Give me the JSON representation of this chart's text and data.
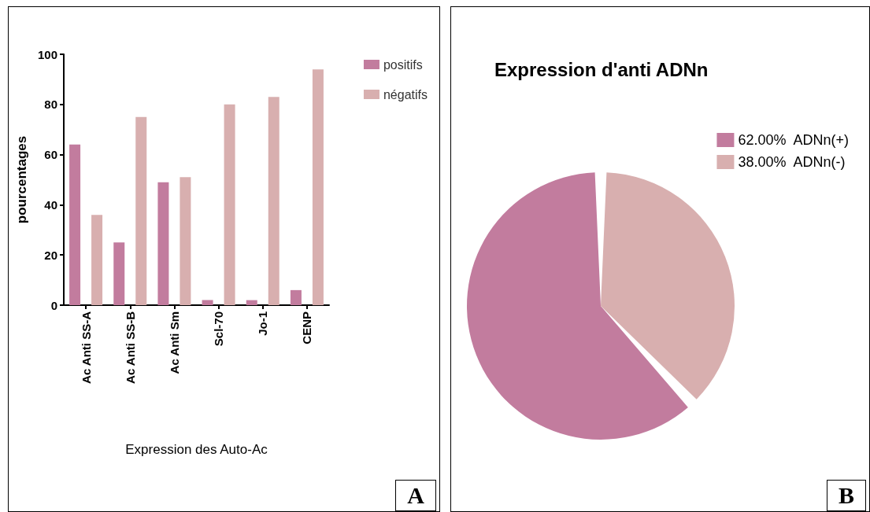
{
  "chart_data": [
    {
      "type": "bar",
      "xlabel": "Expression des Auto-Ac",
      "ylabel": "pourcentages",
      "categories": [
        "Ac Anti SS-A",
        "Ac Anti SS-B",
        "Ac Anti Sm",
        "Scl-70",
        "Jo-1",
        "CENP"
      ],
      "series": [
        {
          "name": "positifs",
          "color": "#c27c9e",
          "values": [
            64,
            25,
            49,
            2,
            2,
            6
          ]
        },
        {
          "name": "négatifs",
          "color": "#d8afaf",
          "values": [
            36,
            75,
            51,
            80,
            83,
            94
          ]
        }
      ],
      "ylim": [
        0,
        100
      ],
      "yticks": [
        0,
        20,
        40,
        60,
        80,
        100
      ],
      "grid": false,
      "legend": "top right",
      "annotations": [
        "A"
      ]
    },
    {
      "type": "pie",
      "title": "Expression d'anti ADNn",
      "categories": [
        "ADNn(+)",
        "ADNn(-)"
      ],
      "values": [
        62,
        38
      ],
      "value_labels": [
        "62.00%",
        "38.00%"
      ],
      "colors": [
        "#c27c9e",
        "#d8afaf"
      ],
      "legend": "right",
      "annotations": [
        "B"
      ]
    }
  ]
}
